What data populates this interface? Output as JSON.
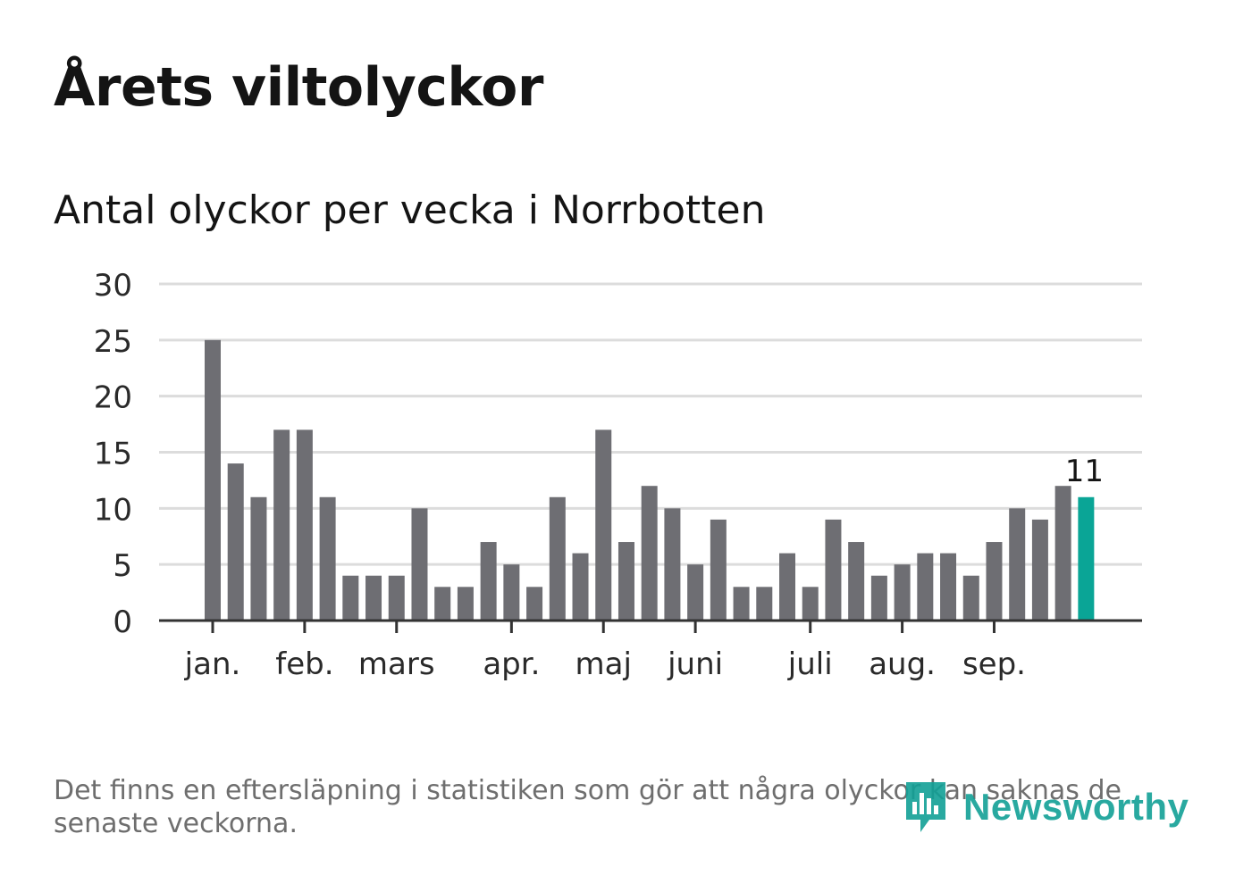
{
  "header": {
    "title": "Årets viltolyckor",
    "subtitle": "Antal olyckor per vecka i Norrbotten"
  },
  "footnote": "Det finns en eftersläpning i statistiken som gör att några olyckor kan saknas de senaste veckorna.",
  "logo": {
    "text": "Newsworthy",
    "icon": "bar-chart-speech-icon"
  },
  "colors": {
    "bar": "#6e6e73",
    "highlight": "#0aa596",
    "grid": "#dcdcdc",
    "axis": "#333333",
    "text": "#141414"
  },
  "chart_data": {
    "type": "bar",
    "title": "Antal olyckor per vecka i Norrbotten",
    "xlabel": "",
    "ylabel": "",
    "ylim": [
      0,
      30
    ],
    "yticks": [
      0,
      5,
      10,
      15,
      20,
      25,
      30
    ],
    "grid": true,
    "weeks": [
      1,
      2,
      3,
      4,
      5,
      6,
      7,
      8,
      9,
      10,
      11,
      12,
      13,
      14,
      15,
      16,
      17,
      18,
      19,
      20,
      21,
      22,
      23,
      24,
      25,
      26,
      27,
      28,
      29,
      30,
      31,
      32,
      33,
      34,
      35,
      36,
      37,
      38,
      39
    ],
    "values": [
      25,
      14,
      11,
      17,
      17,
      11,
      4,
      4,
      4,
      10,
      3,
      3,
      7,
      5,
      3,
      11,
      6,
      17,
      7,
      12,
      10,
      5,
      9,
      3,
      3,
      6,
      3,
      9,
      7,
      4,
      5,
      6,
      6,
      4,
      7,
      10,
      9,
      12,
      11
    ],
    "highlight_index": 38,
    "highlight_label": "11",
    "month_ticks": [
      {
        "label": "jan.",
        "week": 1
      },
      {
        "label": "feb.",
        "week": 5
      },
      {
        "label": "mars",
        "week": 9
      },
      {
        "label": "apr.",
        "week": 14
      },
      {
        "label": "maj",
        "week": 18
      },
      {
        "label": "juni",
        "week": 22
      },
      {
        "label": "juli",
        "week": 27
      },
      {
        "label": "aug.",
        "week": 31
      },
      {
        "label": "sep.",
        "week": 35
      }
    ]
  }
}
